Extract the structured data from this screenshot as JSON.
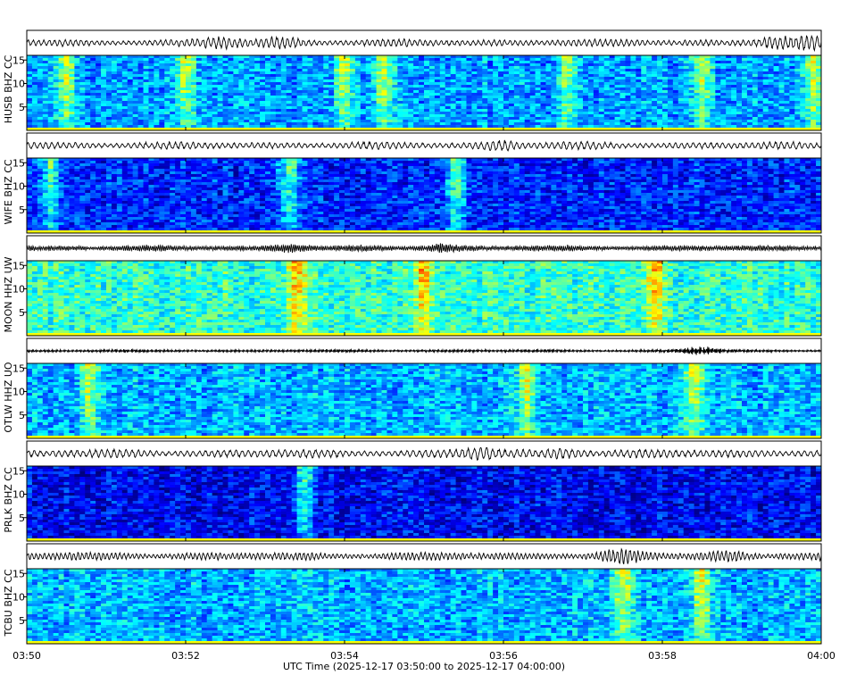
{
  "chart_data": {
    "type": "heatmap",
    "title": "",
    "xlabel": "UTC Time (2025-12-17 03:50:00 to 2025-12-17 04:00:00)",
    "xlim": [
      "03:50",
      "04:00"
    ],
    "x_ticks": [
      "03:50",
      "03:52",
      "03:54",
      "03:56",
      "03:58",
      "04:00"
    ],
    "colormap": "jet",
    "panels": [
      {
        "station": "HUSB BHZ CC",
        "ylim": [
          0,
          16
        ],
        "y_ticks": [
          5,
          10,
          15
        ],
        "level": 0.28,
        "trace_amplitude": 0.35,
        "trace_cycles": 150,
        "bursts_min": [
          0.5,
          2.0,
          4.0,
          4.5,
          6.8,
          8.5,
          9.9
        ],
        "trace_bursts_min": [
          2.5,
          3.2,
          9.4,
          9.9
        ]
      },
      {
        "station": "WIFE BHZ CC",
        "ylim": [
          0,
          16
        ],
        "y_ticks": [
          5,
          10,
          15
        ],
        "level": 0.16,
        "trace_amplitude": 0.35,
        "trace_cycles": 135,
        "bursts_min": [
          0.3,
          3.3,
          5.4
        ],
        "trace_bursts_min": [
          6.0
        ]
      },
      {
        "station": "MOON HHZ UW",
        "ylim": [
          0,
          16
        ],
        "y_ticks": [
          5,
          10,
          15
        ],
        "level": 0.42,
        "trace_amplitude": 0.3,
        "trace_cycles": 1800,
        "bursts_min": [
          3.4,
          5.0,
          7.9
        ],
        "trace_bursts_min": [
          3.3,
          5.2
        ]
      },
      {
        "station": "OTLW HHZ UO",
        "ylim": [
          0,
          16
        ],
        "y_ticks": [
          5,
          10,
          15
        ],
        "level": 0.3,
        "trace_amplitude": 0.15,
        "trace_cycles": 600,
        "bursts_min": [
          0.8,
          6.3,
          8.4
        ],
        "trace_bursts_min": [
          8.5
        ]
      },
      {
        "station": "PRLK BHZ CC",
        "ylim": [
          0,
          16
        ],
        "y_ticks": [
          5,
          10,
          15
        ],
        "level": 0.12,
        "trace_amplitude": 0.4,
        "trace_cycles": 130,
        "bursts_min": [
          3.5
        ],
        "trace_bursts_min": [
          5.7,
          6.8
        ]
      },
      {
        "station": "TCBU BHZ CC",
        "ylim": [
          0,
          16
        ],
        "y_ticks": [
          5,
          10,
          15
        ],
        "level": 0.3,
        "trace_amplitude": 0.38,
        "trace_cycles": 190,
        "bursts_min": [
          7.5,
          8.5
        ],
        "trace_bursts_min": [
          7.5,
          8.8
        ]
      }
    ]
  }
}
